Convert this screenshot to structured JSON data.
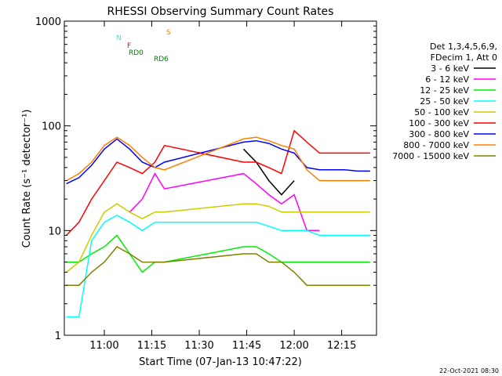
{
  "chart_data": {
    "type": "line",
    "title": "RHESSI Observing Summary Count Rates",
    "xlabel": "Start Time (07-Jan-13 10:47:22)",
    "ylabel": "Count Rate (s⁻¹ detector⁻¹)",
    "yscale": "log",
    "ylim": [
      1,
      1000
    ],
    "xlim": [
      "10:47:22",
      "12:26:00"
    ],
    "x_ticks": [
      "11:00",
      "11:15",
      "11:30",
      "11:45",
      "12:00",
      "12:15"
    ],
    "y_ticks": [
      "1",
      "10",
      "100",
      "1000"
    ],
    "legend": {
      "placement": "right",
      "header": [
        "Det 1,3,4,5,6,9,",
        "FDecim 1, Att 0"
      ],
      "entries": [
        {
          "label": "3 - 6 keV",
          "color": "#000000"
        },
        {
          "label": "6 - 12 keV",
          "color": "#ff00ff"
        },
        {
          "label": "12 - 25 keV",
          "color": "#00ee00"
        },
        {
          "label": "25 - 50 keV",
          "color": "#00ffff"
        },
        {
          "label": "50 - 100 keV",
          "color": "#cccc00"
        },
        {
          "label": "100 - 300 keV",
          "color": "#ff0000"
        },
        {
          "label": "300 - 800 keV",
          "color": "#0000ff"
        },
        {
          "label": "800 - 7000 keV",
          "color": "#ff8000"
        },
        {
          "label": "7000 - 15000 keV",
          "color": "#808000"
        }
      ]
    },
    "flags": [
      {
        "label": "N",
        "color": "#00ffff"
      },
      {
        "label": "F",
        "color": "#ff0000"
      },
      {
        "label": "S",
        "color": "#ff8000"
      },
      {
        "label": "RD0",
        "color": "#008000"
      },
      {
        "label": "RD6",
        "color": "#008000"
      }
    ],
    "x": [
      "10:48",
      "10:52",
      "10:56",
      "11:00",
      "11:04",
      "11:08",
      "11:12",
      "11:16",
      "11:19",
      "11:44",
      "11:48",
      "11:52",
      "11:56",
      "12:00",
      "12:04",
      "12:08",
      "12:12",
      "12:16",
      "12:20",
      "12:24"
    ],
    "series": [
      {
        "name": "3 - 6 keV",
        "color": "#000000",
        "values": [
          null,
          null,
          null,
          null,
          null,
          null,
          null,
          null,
          null,
          60,
          45,
          30,
          22,
          30,
          null,
          null,
          null,
          null,
          null,
          null
        ]
      },
      {
        "name": "6 - 12 keV",
        "color": "#ff00ff",
        "values": [
          null,
          null,
          null,
          null,
          null,
          15,
          20,
          35,
          25,
          35,
          28,
          22,
          18,
          22,
          10,
          10,
          null,
          null,
          null,
          null
        ]
      },
      {
        "name": "12 - 25 keV",
        "color": "#00ee00",
        "values": [
          5,
          5,
          6,
          7,
          9,
          6,
          4,
          5,
          5,
          7,
          7,
          6,
          5,
          5,
          5,
          5,
          5,
          5,
          5,
          5
        ]
      },
      {
        "name": "25 - 50 keV",
        "color": "#00ffff",
        "values": [
          1.5,
          1.5,
          8,
          12,
          14,
          12,
          10,
          12,
          12,
          12,
          12,
          11,
          10,
          10,
          10,
          9,
          9,
          9,
          9,
          9
        ]
      },
      {
        "name": "50 - 100 keV",
        "color": "#cccc00",
        "values": [
          4,
          5,
          9,
          15,
          18,
          15,
          13,
          15,
          15,
          18,
          18,
          17,
          15,
          15,
          15,
          15,
          15,
          15,
          15,
          15
        ]
      },
      {
        "name": "100 - 300 keV",
        "color": "#ff0000",
        "values": [
          9,
          12,
          20,
          30,
          45,
          40,
          35,
          45,
          65,
          45,
          45,
          40,
          35,
          90,
          70,
          55,
          55,
          55,
          55,
          55
        ]
      },
      {
        "name": "300 - 800 keV",
        "color": "#0000ff",
        "values": [
          28,
          32,
          42,
          60,
          75,
          60,
          45,
          40,
          45,
          70,
          72,
          68,
          60,
          55,
          40,
          38,
          38,
          38,
          37,
          37
        ]
      },
      {
        "name": "800 - 7000 keV",
        "color": "#ff8000",
        "values": [
          30,
          35,
          45,
          65,
          78,
          65,
          50,
          40,
          38,
          75,
          78,
          72,
          65,
          60,
          38,
          30,
          30,
          30,
          30,
          30
        ]
      },
      {
        "name": "7000 - 15000 keV",
        "color": "#808000",
        "values": [
          3,
          3,
          4,
          5,
          7,
          6,
          5,
          5,
          5,
          6,
          6,
          5,
          5,
          4,
          3,
          3,
          3,
          3,
          3,
          3
        ]
      }
    ]
  },
  "footer_date": "22-Oct-2021 08:30"
}
